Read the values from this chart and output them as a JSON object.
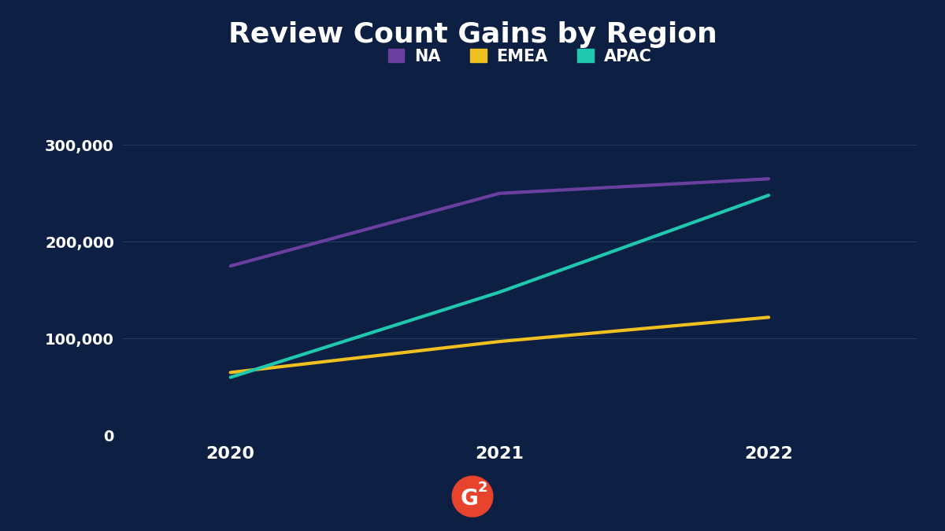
{
  "title": "Review Count Gains by Region",
  "background_color": "#0d2044",
  "grid_color": "#1e3a5f",
  "text_color": "#ffffff",
  "years": [
    2020,
    2021,
    2022
  ],
  "series": [
    {
      "name": "NA",
      "values": [
        175000,
        250000,
        265000
      ],
      "color": "#6b3fa0"
    },
    {
      "name": "EMEA",
      "values": [
        65000,
        97000,
        122000
      ],
      "color": "#f0c020"
    },
    {
      "name": "APAC",
      "values": [
        60000,
        148000,
        248000
      ],
      "color": "#20c8b0"
    }
  ],
  "ylim": [
    0,
    340000
  ],
  "yticks": [
    0,
    100000,
    200000,
    300000
  ],
  "ytick_labels": [
    "0",
    "100,000",
    "200,000",
    "300,000"
  ],
  "title_fontsize": 26,
  "legend_fontsize": 15,
  "tick_fontsize": 14,
  "line_width": 3.0,
  "logo_color": "#e8432d"
}
